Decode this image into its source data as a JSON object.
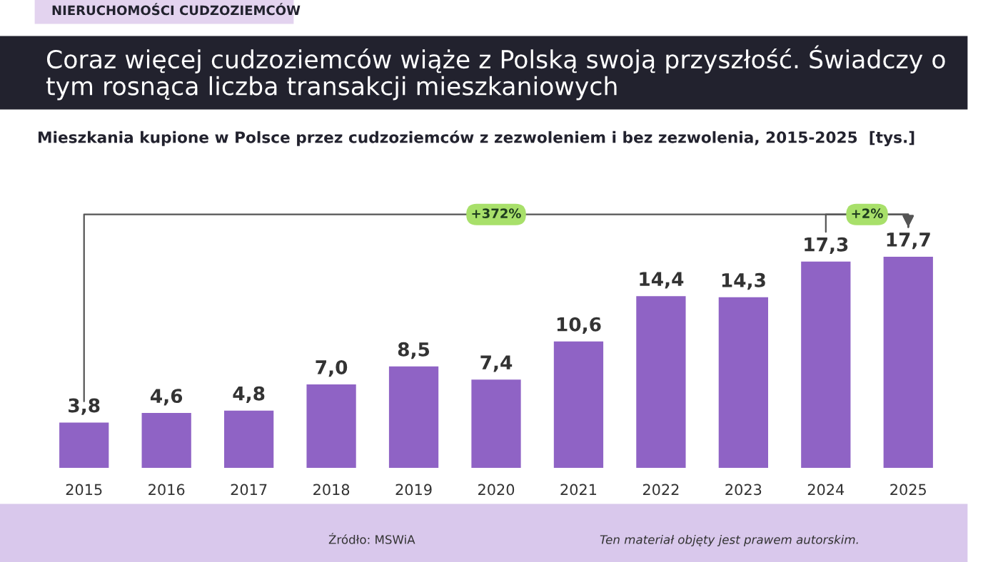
{
  "chart_data": {
    "type": "bar",
    "title": "Coraz więcej cudzoziemców wiąże z Polską swoją przyszłość. Świadczy o tym rosnąca liczba transakcji mieszkaniowych",
    "subtitle": "Mieszkania kupione w Polsce przez cudzoziemców z zezwoleniem i bez zezwolenia, 2015-2025  [tys.]",
    "categories": [
      "2015",
      "2016",
      "2017",
      "2018",
      "2019",
      "2020",
      "2021",
      "2022",
      "2023",
      "2024",
      "2025"
    ],
    "values": [
      3.8,
      4.6,
      4.8,
      7.0,
      8.5,
      7.4,
      10.6,
      14.4,
      14.3,
      17.3,
      17.7
    ],
    "value_labels": [
      "3,8",
      "4,6",
      "4,8",
      "7,0",
      "8,5",
      "7,4",
      "10,6",
      "14,4",
      "14,3",
      "17,3",
      "17,7"
    ],
    "color": "#8f63c5",
    "annotations": [
      "NIERUCHOMOŚCI CUDZOZIEMCÓW",
      "+372%",
      "+2%",
      "Źródło: MSWiA",
      "Ten materiał objęty jest prawem autorskim."
    ],
    "grid": false,
    "legend": false
  }
}
